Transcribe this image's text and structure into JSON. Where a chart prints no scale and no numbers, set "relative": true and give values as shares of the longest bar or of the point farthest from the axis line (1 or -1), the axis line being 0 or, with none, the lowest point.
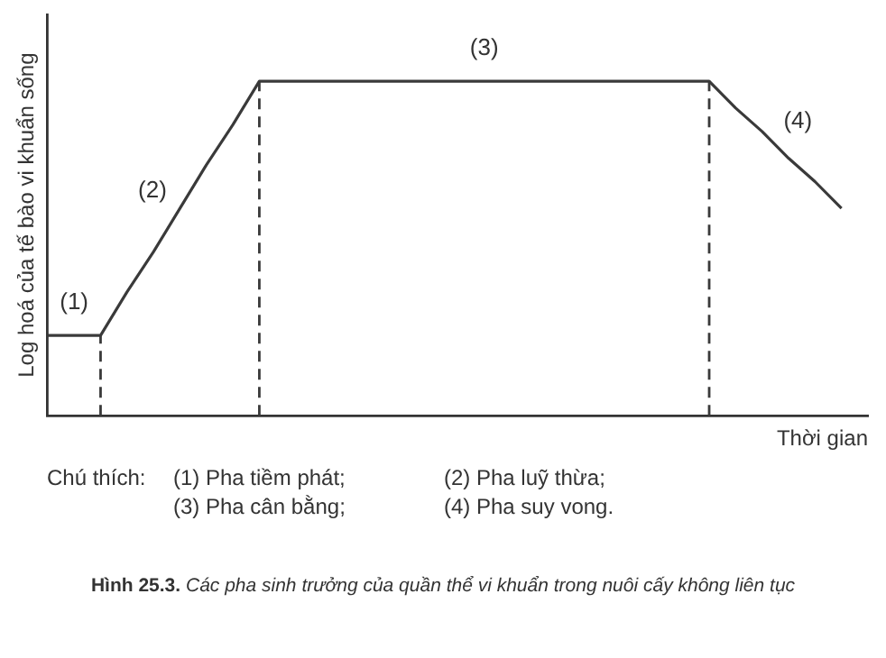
{
  "chart_data": {
    "type": "line",
    "relative": true,
    "xlabel": "Thời gian",
    "ylabel": "Log hoá của tế bào vi khuẩn sống",
    "grid": false,
    "legend": false,
    "marker": "none",
    "line_style": "solid",
    "categories": [
      null,
      null,
      null,
      null,
      null,
      null,
      null,
      null,
      null,
      null,
      null,
      null,
      null,
      null,
      null,
      null,
      null,
      null,
      null,
      null,
      null,
      null,
      null,
      null,
      null,
      null,
      null,
      null,
      null,
      null,
      null,
      null
    ],
    "series": [
      {
        "color": "#3a3a3a",
        "values": [
          0.24,
          0.24,
          0.24,
          0.37,
          0.49,
          0.62,
          0.75,
          0.87,
          1,
          1,
          1,
          1,
          1,
          1,
          1,
          1,
          1,
          1,
          1,
          1,
          1,
          1,
          1,
          1,
          1,
          1,
          0.92,
          0.85,
          0.77,
          0.7,
          0.62,
          null
        ]
      }
    ],
    "annotations": [
      "(1)",
      "(2)",
      "(3)",
      "(4)",
      "Chú thích:",
      "(1) Pha tiềm phát;",
      "(2) Pha luỹ thừa;",
      "(3) Pha cân bằng;",
      "(4) Pha suy vong.",
      "Hình 25.3.",
      "Các pha sinh trưởng của quần thể vi khuẩn trong nuôi cấy không liên tục"
    ]
  }
}
